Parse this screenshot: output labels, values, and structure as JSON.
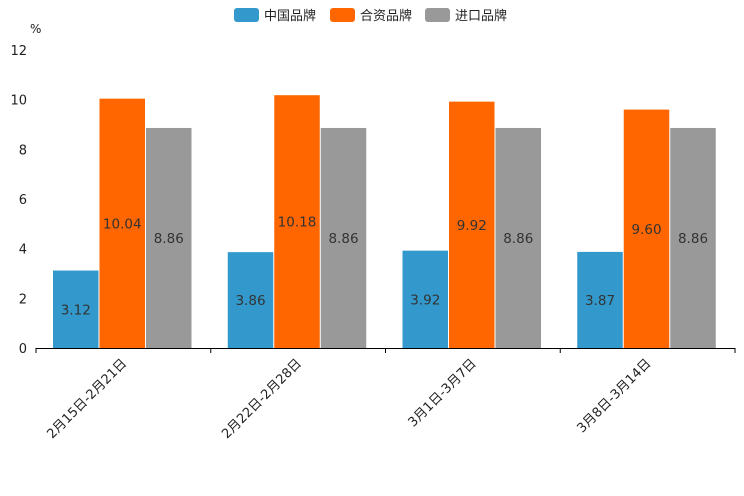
{
  "chart_data": {
    "type": "bar",
    "unit": "%",
    "categories": [
      "2月15日-2月21日",
      "2月22日-2月28日",
      "3月1日-3月7日",
      "3月8日-3月14日"
    ],
    "series": [
      {
        "name": "中国品牌",
        "color": "#3399cc",
        "values": [
          3.12,
          3.86,
          3.92,
          3.87
        ],
        "labels": [
          "3.12",
          "3.86",
          "3.92",
          "3.87"
        ]
      },
      {
        "name": "合资品牌",
        "color": "#ff6600",
        "values": [
          10.04,
          10.18,
          9.92,
          9.6
        ],
        "labels": [
          "10.04",
          "10.18",
          "9.92",
          "9.60"
        ]
      },
      {
        "name": "进口品牌",
        "color": "#999999",
        "values": [
          8.86,
          8.86,
          8.86,
          8.86
        ],
        "labels": [
          "8.86",
          "8.86",
          "8.86",
          "8.86"
        ]
      }
    ],
    "ylim": [
      0,
      12
    ],
    "yticks": [
      0,
      2,
      4,
      6,
      8,
      10,
      12
    ],
    "ytick_labels": [
      "0",
      "2",
      "4",
      "6",
      "8",
      "10",
      "12"
    ],
    "legend_position": "top-center",
    "grid": false
  }
}
